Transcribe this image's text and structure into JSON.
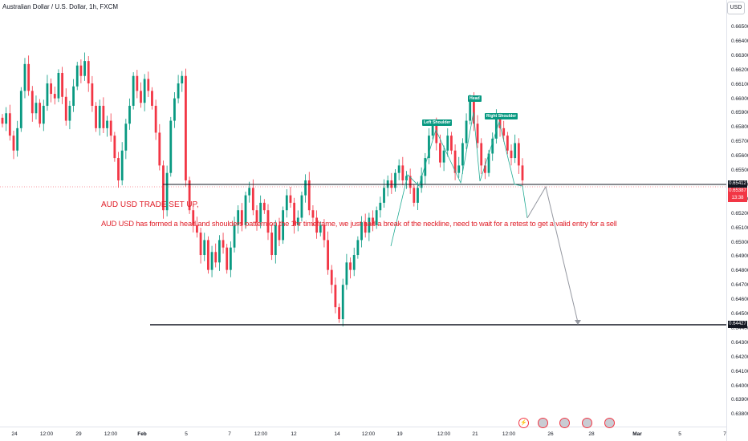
{
  "header": {
    "symbol_title": "Australian Dollar / U.S. Dollar, 1h, FXCM",
    "currency_button": "USD"
  },
  "price_axis": {
    "ticks": [
      "0.66500",
      "0.66400",
      "0.66300",
      "0.66200",
      "0.66100",
      "0.66000",
      "0.65900",
      "0.65800",
      "0.65700",
      "0.65600",
      "0.65500",
      "0.65400",
      "0.65300",
      "0.65200",
      "0.65100",
      "0.65000",
      "0.64900",
      "0.64800",
      "0.64700",
      "0.64600",
      "0.64500",
      "0.64400",
      "0.64300",
      "0.64200",
      "0.64100",
      "0.64000",
      "0.63900",
      "0.63800"
    ],
    "labels": {
      "neckline": "0.65412",
      "current_price": "0.65387",
      "countdown": "13:38",
      "support": "0.64427"
    }
  },
  "time_axis": {
    "ticks": [
      "24",
      "12:00",
      "29",
      "12:00",
      "Feb",
      "5",
      "7",
      "12:00",
      "12",
      "14",
      "12:00",
      "19",
      "12:00",
      "21",
      "12:00",
      "26",
      "28",
      "Mar",
      "5",
      "7",
      "11"
    ]
  },
  "pattern_labels": {
    "left_shoulder": "Left Shoulder",
    "head": "Head",
    "right_shoulder": "Right Shoulder"
  },
  "annotation": {
    "title": "AUD USD TRADE SET UP,",
    "body": "AUD USD has formed a head and shoulders pattern on the 1hr timeframe, we just had a break of the neckline, need to wait for a retest to get a valid entry for a sell"
  },
  "colors": {
    "up": "#089981",
    "down": "#f23645",
    "label_bg": "#131722",
    "current_price": "#f23645",
    "annotation": "#e0202a"
  },
  "chart_data": {
    "type": "candlestick",
    "symbol": "AUDUSD",
    "timeframe": "1h",
    "ylim": [
      0.6375,
      0.6655
    ],
    "levels": {
      "neckline": 0.65412,
      "support": 0.64427,
      "current": 0.65387
    },
    "pattern": {
      "left_shoulder": 0.6578,
      "head": 0.6595,
      "right_shoulder": 0.6585
    },
    "closes": [
      0.6578,
      0.6585,
      0.657,
      0.656,
      0.6575,
      0.66,
      0.6618,
      0.66,
      0.6585,
      0.6592,
      0.6578,
      0.659,
      0.6605,
      0.6598,
      0.6595,
      0.6612,
      0.6596,
      0.658,
      0.659,
      0.6603,
      0.6617,
      0.661,
      0.662,
      0.6605,
      0.659,
      0.6575,
      0.659,
      0.6575,
      0.658,
      0.657,
      0.6555,
      0.654,
      0.656,
      0.6578,
      0.659,
      0.661,
      0.66,
      0.6592,
      0.6608,
      0.66,
      0.659,
      0.6572,
      0.655,
      0.652,
      0.6545,
      0.658,
      0.6595,
      0.6605,
      0.661,
      0.654,
      0.652,
      0.651,
      0.6505,
      0.649,
      0.65,
      0.648,
      0.6492,
      0.6485,
      0.65,
      0.6495,
      0.648,
      0.6495,
      0.651,
      0.652,
      0.651,
      0.653,
      0.6535,
      0.652,
      0.6512,
      0.6525,
      0.652,
      0.6505,
      0.649,
      0.651,
      0.65,
      0.652,
      0.653,
      0.6525,
      0.651,
      0.6515,
      0.653,
      0.654,
      0.652,
      0.6515,
      0.6505,
      0.651,
      0.65,
      0.648,
      0.647,
      0.6455,
      0.6447,
      0.647,
      0.6485,
      0.648,
      0.649,
      0.65,
      0.6512,
      0.6505,
      0.6515,
      0.651,
      0.652,
      0.6525,
      0.6535,
      0.654,
      0.6535,
      0.6545,
      0.655,
      0.654,
      0.6543,
      0.6535,
      0.6525,
      0.6535,
      0.6543,
      0.6555,
      0.657,
      0.6578,
      0.6565,
      0.6552,
      0.656,
      0.657,
      0.656,
      0.6545,
      0.655,
      0.6565,
      0.658,
      0.6595,
      0.6578,
      0.6565,
      0.655,
      0.6545,
      0.6558,
      0.6568,
      0.6582,
      0.6575,
      0.657,
      0.656,
      0.6555,
      0.6565,
      0.655,
      0.654
    ]
  }
}
